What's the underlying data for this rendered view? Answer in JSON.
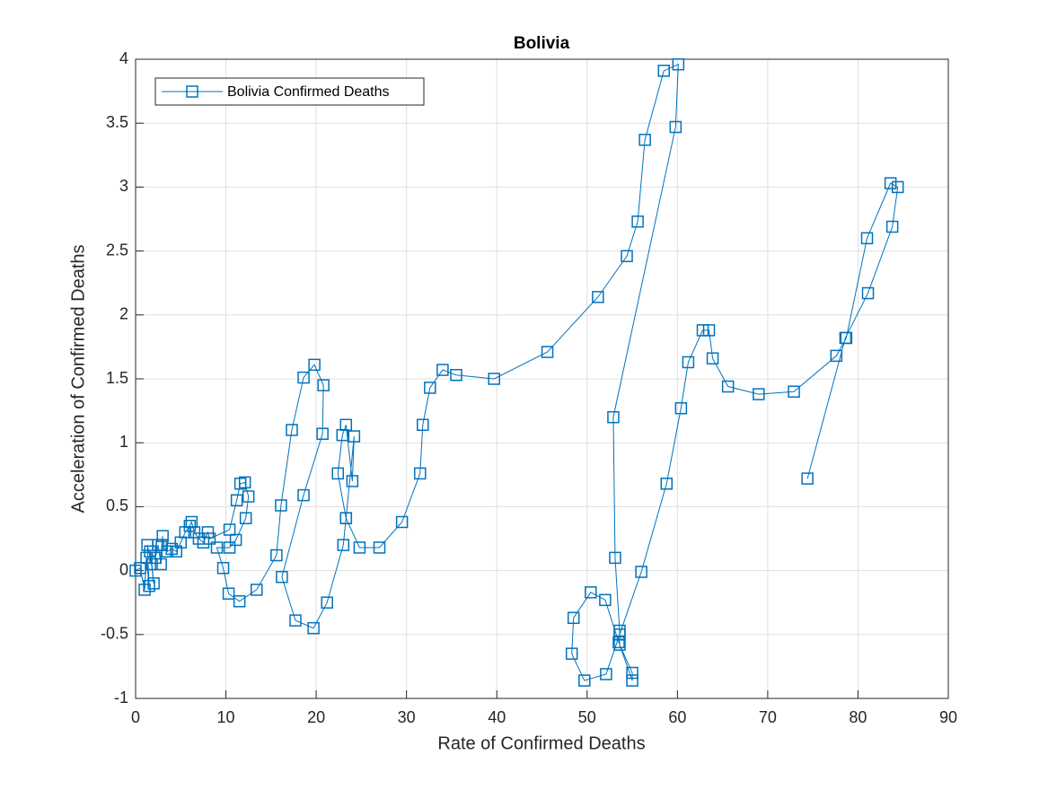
{
  "chart_data": {
    "type": "line",
    "title": "Bolivia",
    "x_label": "Rate of Confirmed Deaths",
    "y_label": "Acceleration of Confirmed Deaths",
    "x": [
      0,
      0.5,
      1,
      1.2,
      1.5,
      1.3,
      1.8,
      2,
      1.6,
      2.2,
      2.5,
      2.8,
      3,
      2.9,
      3.5,
      4,
      4.5,
      5,
      5.5,
      6,
      6.2,
      6.5,
      7,
      7.5,
      8,
      8.2,
      10.4,
      11.2,
      11.6,
      12.1,
      12.5,
      12.2,
      11.1,
      10.4,
      9,
      9.7,
      10.3,
      11.5,
      13.4,
      15.6,
      16.1,
      17.3,
      18.6,
      19.8,
      20.8,
      20.7,
      18.6,
      16.2,
      17.7,
      19.7,
      21.2,
      23,
      23.3,
      24.2,
      24,
      23.3,
      22.9,
      22.4,
      23.3,
      24.8,
      27,
      29.5,
      31.5,
      31.8,
      32.6,
      34,
      35.5,
      39.7,
      45.6,
      51.2,
      54.4,
      55.6,
      56.4,
      58.5,
      60.1,
      59.8,
      52.9,
      53.1,
      53.6,
      53.6,
      55,
      55,
      53.5,
      52,
      50.4,
      48.5,
      48.3,
      49.7,
      52.1,
      53.6,
      56,
      58.8,
      60.4,
      61.2,
      62.8,
      63.5,
      63.9,
      65.6,
      69,
      72.9,
      77.6,
      78.7,
      81,
      83.6,
      84.4,
      83.8,
      81.1,
      78.6,
      74.4
    ],
    "series": [
      {
        "name": "Bolivia Confirmed Deaths",
        "color": "#0072bd",
        "values": [
          0,
          0.02,
          -0.15,
          0.1,
          -0.12,
          0.2,
          0.05,
          -0.1,
          0.15,
          0.1,
          0.2,
          0.05,
          0.27,
          0.2,
          0.15,
          0.17,
          0.15,
          0.22,
          0.3,
          0.35,
          0.38,
          0.3,
          0.25,
          0.22,
          0.3,
          0.25,
          0.32,
          0.55,
          0.68,
          0.69,
          0.58,
          0.41,
          0.24,
          0.18,
          0.18,
          0.02,
          -0.18,
          -0.24,
          -0.15,
          0.12,
          0.51,
          1.1,
          1.51,
          1.61,
          1.45,
          1.07,
          0.59,
          -0.05,
          -0.39,
          -0.45,
          -0.25,
          0.2,
          0.41,
          1.05,
          0.7,
          1.14,
          1.06,
          0.76,
          0.41,
          0.18,
          0.18,
          0.38,
          0.76,
          1.14,
          1.43,
          1.57,
          1.53,
          1.5,
          1.71,
          2.14,
          2.46,
          2.73,
          3.37,
          3.91,
          3.96,
          3.47,
          1.2,
          0.1,
          -0.47,
          -0.58,
          -0.8,
          -0.86,
          -0.56,
          -0.23,
          -0.17,
          -0.37,
          -0.65,
          -0.86,
          -0.81,
          -0.5,
          -0.01,
          0.68,
          1.27,
          1.63,
          1.88,
          1.88,
          1.66,
          1.44,
          1.38,
          1.4,
          1.68,
          1.82,
          2.6,
          3.03,
          3.0,
          2.69,
          2.17,
          1.82,
          0.72
        ]
      }
    ],
    "marker": "square",
    "xlim": [
      0,
      90
    ],
    "xticks": [
      0,
      10,
      20,
      30,
      40,
      50,
      60,
      70,
      80,
      90
    ],
    "ylim": [
      -1,
      4
    ],
    "yticks": [
      -1,
      -0.5,
      0,
      0.5,
      1,
      1.5,
      2,
      2.5,
      3,
      3.5,
      4
    ],
    "grid": true,
    "legend": "upper-left"
  }
}
